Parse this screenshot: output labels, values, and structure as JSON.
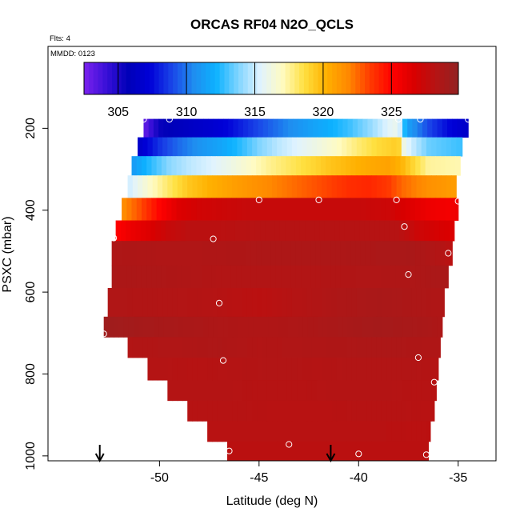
{
  "chart_data": {
    "type": "heatmap",
    "title": "ORCAS RF04 N2O_QCLS",
    "flights_label": "Flts: 4",
    "date_label": "MMDD: 0123",
    "xlabel": "Latitude (deg N)",
    "ylabel": "PSXC (mbar)",
    "xlim": [
      -55.6,
      -33.1
    ],
    "ylim": [
      1012,
      0
    ],
    "x_ticks": [
      -50,
      -45,
      -40,
      -35
    ],
    "y_ticks": [
      200,
      400,
      600,
      800,
      1000
    ],
    "colorbar": {
      "min": 302.5,
      "max": 329.9,
      "ticks": [
        305,
        310,
        315,
        320,
        325
      ],
      "colors": [
        "#7b22ee",
        "#3a10d8",
        "#0000b8",
        "#0000d8",
        "#1a46e8",
        "#1f8ef0",
        "#0cb2ff",
        "#7fd4ff",
        "#e0f3ff",
        "#fffbc2",
        "#ffe040",
        "#ffb000",
        "#ff8800",
        "#ff3a00",
        "#ff0000",
        "#d80000",
        "#b41414",
        "#922222"
      ]
    },
    "layers": [
      {
        "p_top": 177,
        "p_bot": 222,
        "x_start": -50.8,
        "x_end": -34.5,
        "values": [
          [
            -50.8,
            303
          ],
          [
            -50.0,
            305.5
          ],
          [
            -49.0,
            306
          ],
          [
            -48.5,
            306.3
          ],
          [
            -47.5,
            306.8
          ],
          [
            -46.5,
            307.5
          ],
          [
            -45.5,
            308.5
          ],
          [
            -44.5,
            309.5
          ],
          [
            -43.5,
            310.5
          ],
          [
            -42.5,
            311.3
          ],
          [
            -41.5,
            312
          ],
          [
            -40.5,
            312.8
          ],
          [
            -39.5,
            314
          ],
          [
            -38.5,
            315.5
          ],
          [
            -38.0,
            316
          ],
          [
            -37.6,
            311.5
          ],
          [
            -36.5,
            309
          ],
          [
            -35.5,
            307.5
          ],
          [
            -34.5,
            306.5
          ]
        ]
      },
      {
        "p_top": 222,
        "p_bot": 268,
        "x_start": -51.1,
        "x_end": -34.8,
        "values": [
          [
            -51.1,
            306.5
          ],
          [
            -50.0,
            308.5
          ],
          [
            -49.0,
            309.8
          ],
          [
            -48.0,
            310.8
          ],
          [
            -47.0,
            311.5
          ],
          [
            -46.0,
            312.5
          ],
          [
            -45.0,
            313.8
          ],
          [
            -44.0,
            314.8
          ],
          [
            -43.0,
            315.5
          ],
          [
            -42.0,
            316.2
          ],
          [
            -41.0,
            317
          ],
          [
            -40.0,
            318
          ],
          [
            -39.0,
            318.8
          ],
          [
            -38.0,
            319.3
          ],
          [
            -37.7,
            315.8
          ],
          [
            -36.5,
            313.5
          ],
          [
            -34.8,
            312.8
          ]
        ]
      },
      {
        "p_top": 268,
        "p_bot": 315,
        "x_start": -51.4,
        "x_end": -34.9,
        "values": [
          [
            -51.4,
            311
          ],
          [
            -50.5,
            312.5
          ],
          [
            -49.5,
            314
          ],
          [
            -48.5,
            314.8
          ],
          [
            -47.5,
            315.3
          ],
          [
            -46.5,
            316
          ],
          [
            -45.5,
            316.8
          ],
          [
            -44.5,
            317.6
          ],
          [
            -43.5,
            318.2
          ],
          [
            -42.5,
            318.8
          ],
          [
            -41.5,
            319.5
          ],
          [
            -40.5,
            320
          ],
          [
            -39.5,
            320.5
          ],
          [
            -38.5,
            320.8
          ],
          [
            -37.8,
            320
          ],
          [
            -36.5,
            317.5
          ],
          [
            -34.9,
            317.2
          ]
        ]
      },
      {
        "p_top": 315,
        "p_bot": 370,
        "x_start": -51.6,
        "x_end": -35.1,
        "values": [
          [
            -51.6,
            315
          ],
          [
            -50.5,
            316.8
          ],
          [
            -49.5,
            318.2
          ],
          [
            -48.5,
            319.5
          ],
          [
            -47.5,
            320.2
          ],
          [
            -46.5,
            320.8
          ],
          [
            -45.5,
            321.3
          ],
          [
            -44.5,
            321.8
          ],
          [
            -43.5,
            322.3
          ],
          [
            -42.5,
            322.8
          ],
          [
            -41.5,
            323.3
          ],
          [
            -40.5,
            323.8
          ],
          [
            -39.5,
            324
          ],
          [
            -38.5,
            323.5
          ],
          [
            -37.8,
            322.5
          ],
          [
            -36.5,
            321.5
          ],
          [
            -35.1,
            321
          ]
        ]
      },
      {
        "p_top": 370,
        "p_bot": 425,
        "x_start": -51.9,
        "x_end": -35.0,
        "values": [
          [
            -51.9,
            321.5
          ],
          [
            -51.0,
            323
          ],
          [
            -50.0,
            325
          ],
          [
            -49.0,
            326.5
          ],
          [
            -48.0,
            327
          ],
          [
            -47.0,
            327.2
          ],
          [
            -45.5,
            327.5
          ],
          [
            -44.0,
            327.5
          ],
          [
            -42.0,
            327.5
          ],
          [
            -40.0,
            327.5
          ],
          [
            -38.5,
            327.2
          ],
          [
            -37.5,
            326.5
          ],
          [
            -36.5,
            325.8
          ],
          [
            -35.5,
            325.5
          ],
          [
            -35.0,
            325.8
          ]
        ]
      },
      {
        "p_top": 425,
        "p_bot": 475,
        "x_start": -52.2,
        "x_end": -35.2,
        "values": [
          [
            -52.2,
            325
          ],
          [
            -51.5,
            325.8
          ],
          [
            -50.5,
            326.5
          ],
          [
            -49.5,
            327.5
          ],
          [
            -48.5,
            328
          ],
          [
            -47.0,
            328
          ],
          [
            -45.0,
            328.2
          ],
          [
            -42.0,
            328.2
          ],
          [
            -40.0,
            328.2
          ],
          [
            -38.0,
            328.2
          ],
          [
            -37.0,
            327.2
          ],
          [
            -36.0,
            326.8
          ],
          [
            -35.2,
            326.5
          ]
        ]
      },
      {
        "p_top": 475,
        "p_bot": 535,
        "x_start": -52.4,
        "x_end": -35.3,
        "values": [
          [
            -52.4,
            328.6
          ],
          [
            -50.0,
            328.5
          ],
          [
            -48.0,
            328.5
          ],
          [
            -45.0,
            328.6
          ],
          [
            -42.0,
            328.6
          ],
          [
            -39.0,
            328.7
          ],
          [
            -37.5,
            328.8
          ],
          [
            -36.0,
            328.4
          ],
          [
            -35.3,
            328
          ]
        ]
      },
      {
        "p_top": 535,
        "p_bot": 590,
        "x_start": -52.4,
        "x_end": -35.5,
        "values": [
          [
            -52.4,
            328.7
          ],
          [
            -50.0,
            328.6
          ],
          [
            -47.0,
            328.4
          ],
          [
            -45.0,
            328.4
          ],
          [
            -42.0,
            328.4
          ],
          [
            -39.0,
            328.5
          ],
          [
            -37.0,
            328.6
          ],
          [
            -35.5,
            328.8
          ]
        ]
      },
      {
        "p_top": 590,
        "p_bot": 660,
        "x_start": -52.6,
        "x_end": -35.7,
        "values": [
          [
            -52.6,
            328.5
          ],
          [
            -50.0,
            328.4
          ],
          [
            -47.5,
            328.3
          ],
          [
            -46.0,
            328.1
          ],
          [
            -45.0,
            328
          ],
          [
            -43.0,
            328.3
          ],
          [
            -41.0,
            328.6
          ],
          [
            -39.0,
            328.8
          ],
          [
            -37.0,
            328.6
          ],
          [
            -35.7,
            328.5
          ]
        ]
      },
      {
        "p_top": 660,
        "p_bot": 710,
        "x_start": -52.8,
        "x_end": -35.8,
        "values": [
          [
            -52.8,
            329.3
          ],
          [
            -51.0,
            329
          ],
          [
            -49.0,
            328.8
          ],
          [
            -47.0,
            328.6
          ],
          [
            -45.0,
            328.5
          ],
          [
            -43.0,
            328.6
          ],
          [
            -41.0,
            328.8
          ],
          [
            -39.0,
            329
          ],
          [
            -37.0,
            328.8
          ],
          [
            -35.8,
            328.6
          ]
        ]
      },
      {
        "p_top": 710,
        "p_bot": 760,
        "x_start": -51.6,
        "x_end": -35.9,
        "values": [
          [
            -51.6,
            328.4
          ],
          [
            -49.0,
            328.5
          ],
          [
            -47.0,
            328.6
          ],
          [
            -45.0,
            328.4
          ],
          [
            -43.0,
            328.5
          ],
          [
            -40.0,
            328.6
          ],
          [
            -38.0,
            328.6
          ],
          [
            -35.9,
            328.5
          ]
        ]
      },
      {
        "p_top": 760,
        "p_bot": 815,
        "x_start": -50.6,
        "x_end": -36.0,
        "values": [
          [
            -50.6,
            328.3
          ],
          [
            -48.0,
            328.2
          ],
          [
            -46.0,
            328.3
          ],
          [
            -44.0,
            328.4
          ],
          [
            -42.0,
            328.3
          ],
          [
            -40.0,
            328.4
          ],
          [
            -38.0,
            328.4
          ],
          [
            -36.0,
            328.3
          ]
        ]
      },
      {
        "p_top": 815,
        "p_bot": 865,
        "x_start": -49.6,
        "x_end": -36.1,
        "values": [
          [
            -49.6,
            328.3
          ],
          [
            -47.0,
            328.3
          ],
          [
            -45.0,
            328.2
          ],
          [
            -43.0,
            328.2
          ],
          [
            -41.0,
            328.3
          ],
          [
            -39.0,
            328.3
          ],
          [
            -37.0,
            328.2
          ],
          [
            -36.1,
            328.2
          ]
        ]
      },
      {
        "p_top": 865,
        "p_bot": 915,
        "x_start": -48.6,
        "x_end": -36.2,
        "values": [
          [
            -48.6,
            328.2
          ],
          [
            -46.0,
            328.2
          ],
          [
            -44.0,
            328.1
          ],
          [
            -42.0,
            328.1
          ],
          [
            -40.0,
            328.2
          ],
          [
            -38.0,
            328.2
          ],
          [
            -36.2,
            328.1
          ]
        ]
      },
      {
        "p_top": 915,
        "p_bot": 965,
        "x_start": -47.6,
        "x_end": -36.4,
        "values": [
          [
            -47.6,
            328.1
          ],
          [
            -45.0,
            328.1
          ],
          [
            -43.0,
            328.1
          ],
          [
            -41.0,
            328.1
          ],
          [
            -39.0,
            328.1
          ],
          [
            -36.4,
            328
          ]
        ]
      },
      {
        "p_top": 965,
        "p_bot": 1012,
        "x_start": -46.6,
        "x_end": -36.5,
        "values": [
          [
            -46.6,
            328
          ],
          [
            -44.0,
            328
          ],
          [
            -42.0,
            328
          ],
          [
            -40.0,
            328
          ],
          [
            -38.0,
            328
          ],
          [
            -36.5,
            328
          ]
        ]
      }
    ],
    "points": [
      [
        -50.8,
        178
      ],
      [
        -49.5,
        178
      ],
      [
        -38.0,
        178
      ],
      [
        -36.9,
        178
      ],
      [
        -34.5,
        178
      ],
      [
        -45.0,
        375
      ],
      [
        -42.0,
        375
      ],
      [
        -38.1,
        375
      ],
      [
        -35.0,
        378
      ],
      [
        -37.7,
        440
      ],
      [
        -52.3,
        468
      ],
      [
        -47.3,
        470
      ],
      [
        -35.5,
        505
      ],
      [
        -37.5,
        557
      ],
      [
        -47.0,
        627
      ],
      [
        -52.8,
        702
      ],
      [
        -37.0,
        760
      ],
      [
        -46.8,
        767
      ],
      [
        -36.2,
        820
      ],
      [
        -43.5,
        972
      ],
      [
        -46.5,
        988
      ],
      [
        -40.0,
        995
      ],
      [
        -36.6,
        997
      ]
    ],
    "arrows": [
      -53.0,
      -41.4
    ]
  }
}
